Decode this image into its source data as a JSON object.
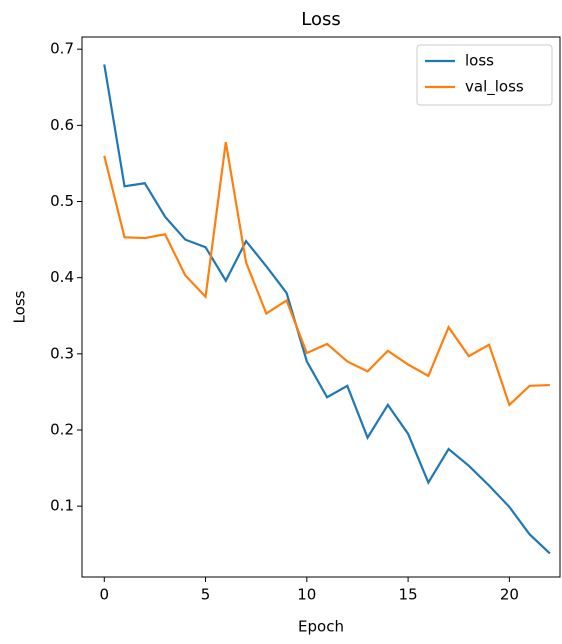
{
  "chart_data": {
    "type": "line",
    "title": "Loss",
    "x_label": "Epoch",
    "y_label": "Loss",
    "x": [
      0,
      1,
      2,
      3,
      4,
      5,
      6,
      7,
      8,
      9,
      10,
      11,
      12,
      13,
      14,
      15,
      16,
      17,
      18,
      19,
      20,
      21,
      22
    ],
    "series": [
      {
        "name": "loss",
        "color": "#1f77b4",
        "values": [
          0.68,
          0.52,
          0.524,
          0.48,
          0.45,
          0.44,
          0.396,
          0.448,
          0.415,
          0.38,
          0.29,
          0.243,
          0.258,
          0.19,
          0.233,
          0.195,
          0.131,
          0.175,
          0.153,
          0.127,
          0.099,
          0.063,
          0.038
        ]
      },
      {
        "name": "val_loss",
        "color": "#ff7f0e",
        "values": [
          0.56,
          0.453,
          0.452,
          0.457,
          0.403,
          0.375,
          0.578,
          0.42,
          0.353,
          0.37,
          0.301,
          0.313,
          0.29,
          0.277,
          0.304,
          0.286,
          0.271,
          0.335,
          0.297,
          0.312,
          0.233,
          0.258,
          0.259
        ]
      }
    ],
    "xlim": [
      -1.1,
      22.5
    ],
    "ylim": [
      0.007,
      0.716
    ],
    "xticks": [
      0,
      5,
      10,
      15,
      20
    ],
    "yticks": [
      0.1,
      0.2,
      0.3,
      0.4,
      0.5,
      0.6,
      0.7
    ],
    "legend": "upper right"
  }
}
